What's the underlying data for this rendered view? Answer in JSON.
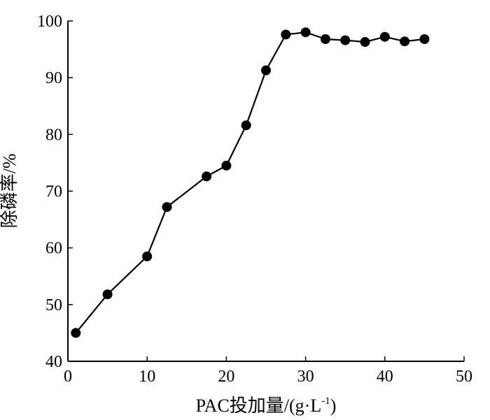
{
  "chart_data": {
    "type": "line",
    "title": "",
    "xlabel": "PAC投加量/(g·L",
    "xlabel_sup": "-1",
    "xlabel_close": ")",
    "ylabel": "除磷率/%",
    "xlim": [
      0,
      50
    ],
    "ylim": [
      40,
      100
    ],
    "x_ticks": [
      0,
      10,
      20,
      30,
      40,
      50
    ],
    "y_ticks": [
      40,
      50,
      60,
      70,
      80,
      90,
      100
    ],
    "grid": false,
    "marker": "filled-circle",
    "line_color": "#000000",
    "series": [
      {
        "x": [
          1,
          5,
          10,
          12.5,
          17.5,
          20,
          22.5,
          25,
          27.5,
          30,
          32.5,
          35,
          37.5,
          40,
          42.5,
          45
        ],
        "y": [
          45.0,
          51.8,
          58.5,
          67.2,
          72.6,
          74.5,
          81.6,
          91.3,
          97.6,
          98.0,
          96.8,
          96.6,
          96.3,
          97.2,
          96.4,
          96.8
        ]
      }
    ]
  }
}
